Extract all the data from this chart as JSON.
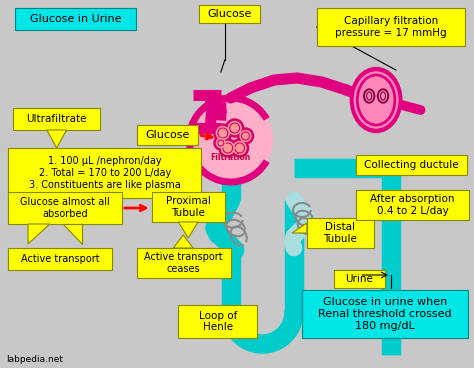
{
  "background_color": "#c8c8c8",
  "yellow": "#ffff00",
  "cyan_light": "#00e5e5",
  "title_cyan": "#00d4d4",
  "pink_dark": "#e0007f",
  "pink_light": "#ffb6c1",
  "pink_mid": "#ff69b4",
  "tubule_cyan": "#00cccc",
  "labels": {
    "title": "Glucose in Urine",
    "glucose_top": "Glucose",
    "capillary": "Capillary filtration\npressure = 17 mmHg",
    "ultrafiltrate": "Ultrafiltrate",
    "glucose_mid": "Glucose",
    "filtration": "Filtration",
    "ultrafiltrate_details": "1. 100 μL /nephron/day\n2. Total = 170 to 200 L/day\n3. Constituents are like plasma",
    "glucose_absorbed": "Glucose almost all\nabsorbed",
    "proximal_tubule": "Proximal\nTubule",
    "active_transport": "Active transport",
    "active_transport_ceases": "Active transport\nceases",
    "loop_henle": "Loop of\nHenle",
    "distal_tubule": "Distal\nTubule",
    "collecting_ductule": "Collecting ductule",
    "after_absorption": "After absorption\n0.4 to 2 L/day",
    "urine": "Urine",
    "glucose_urine": "Glucose in urine when\nRenal threshold crossed\n180 mg/dL",
    "watermark": "labpedia.net"
  }
}
